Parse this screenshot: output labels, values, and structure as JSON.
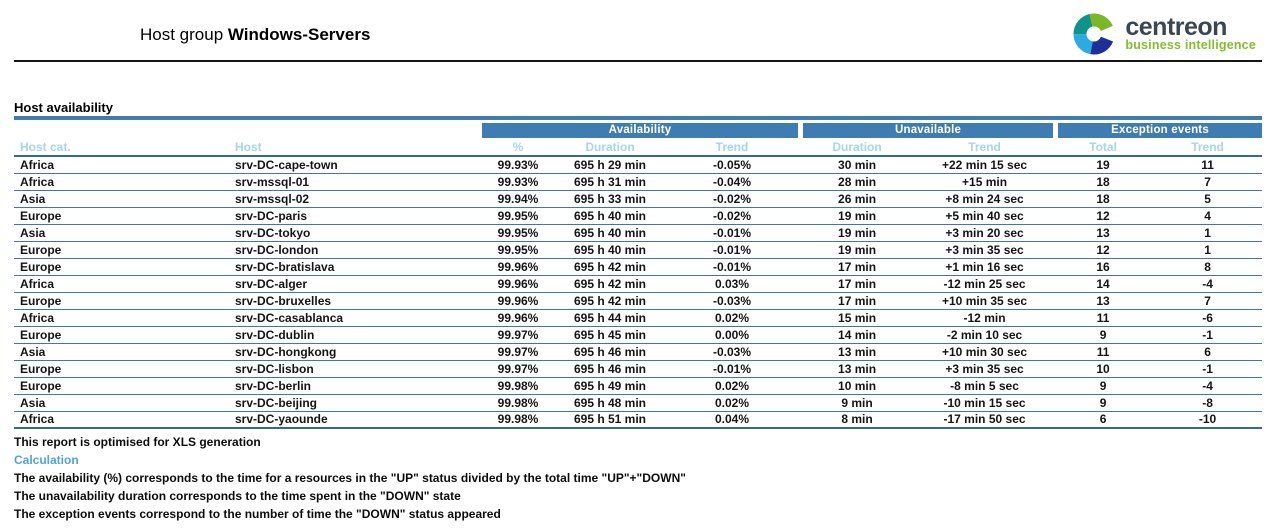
{
  "header": {
    "title_prefix": "Host group",
    "title_name": "Windows-Servers",
    "logo": {
      "brand": "centreon",
      "tagline": "business intelligence"
    }
  },
  "section": {
    "title": "Host availability"
  },
  "table": {
    "groups": [
      {
        "label": "Availability"
      },
      {
        "label": "Unavailable"
      },
      {
        "label": "Exception events"
      }
    ],
    "columns": [
      "Host cat.",
      "Host",
      "%",
      "Duration",
      "Trend",
      "Duration",
      "Trend",
      "Total",
      "Trend"
    ],
    "rows": [
      [
        "Africa",
        "srv-DC-cape-town",
        "99.93%",
        "695 h 29 min",
        "-0.05%",
        "30 min",
        "+22 min 15 sec",
        "19",
        "11"
      ],
      [
        "Africa",
        "srv-mssql-01",
        "99.93%",
        "695 h 31 min",
        "-0.04%",
        "28 min",
        "+15 min",
        "18",
        "7"
      ],
      [
        "Asia",
        "srv-mssql-02",
        "99.94%",
        "695 h 33 min",
        "-0.02%",
        "26 min",
        "+8 min 24 sec",
        "18",
        "5"
      ],
      [
        "Europe",
        "srv-DC-paris",
        "99.95%",
        "695 h 40 min",
        "-0.02%",
        "19 min",
        "+5 min 40 sec",
        "12",
        "4"
      ],
      [
        "Asia",
        "srv-DC-tokyo",
        "99.95%",
        "695 h 40 min",
        "-0.01%",
        "19 min",
        "+3 min 20 sec",
        "13",
        "1"
      ],
      [
        "Europe",
        "srv-DC-london",
        "99.95%",
        "695 h 40 min",
        "-0.01%",
        "19 min",
        "+3 min 35 sec",
        "12",
        "1"
      ],
      [
        "Europe",
        "srv-DC-bratislava",
        "99.96%",
        "695 h 42 min",
        "-0.01%",
        "17 min",
        "+1 min 16 sec",
        "16",
        "8"
      ],
      [
        "Africa",
        "srv-DC-alger",
        "99.96%",
        "695 h 42 min",
        "0.03%",
        "17 min",
        "-12 min 25 sec",
        "14",
        "-4"
      ],
      [
        "Europe",
        "srv-DC-bruxelles",
        "99.96%",
        "695 h 42 min",
        "-0.03%",
        "17 min",
        "+10 min 35 sec",
        "13",
        "7"
      ],
      [
        "Africa",
        "srv-DC-casablanca",
        "99.96%",
        "695 h 44 min",
        "0.02%",
        "15 min",
        "-12 min",
        "11",
        "-6"
      ],
      [
        "Europe",
        "srv-DC-dublin",
        "99.97%",
        "695 h 45 min",
        "0.00%",
        "14 min",
        "-2 min 10 sec",
        "9",
        "-1"
      ],
      [
        "Asia",
        "srv-DC-hongkong",
        "99.97%",
        "695 h 46 min",
        "-0.03%",
        "13 min",
        "+10 min 30 sec",
        "11",
        "6"
      ],
      [
        "Europe",
        "srv-DC-lisbon",
        "99.97%",
        "695 h 46 min",
        "-0.01%",
        "13 min",
        "+3 min 35 sec",
        "10",
        "-1"
      ],
      [
        "Europe",
        "srv-DC-berlin",
        "99.98%",
        "695 h 49 min",
        "0.02%",
        "10 min",
        "-8 min 5 sec",
        "9",
        "-4"
      ],
      [
        "Asia",
        "srv-DC-beijing",
        "99.98%",
        "695 h 48 min",
        "0.02%",
        "9 min",
        "-10 min 15 sec",
        "9",
        "-8"
      ],
      [
        "Africa",
        "srv-DC-yaounde",
        "99.98%",
        "695 h 51 min",
        "0.04%",
        "8 min",
        "-17 min 50 sec",
        "6",
        "-10"
      ]
    ]
  },
  "footer": {
    "note": "This report is optimised for XLS generation",
    "calculation_title": "Calculation",
    "lines": [
      "The availability (%) corresponds to the time for a resources in the \"UP\" status divided by the total time \"UP\"+\"DOWN\"",
      "The unavailability duration corresponds to the time spent in the \"DOWN\" state",
      "The exception events correspond to the number of time the \"DOWN\" status appeared"
    ]
  },
  "colors": {
    "header_bar": "#3e7cb1",
    "subheader_text": "#a5d5ef",
    "row_line": "#3c77ad",
    "heavy_line": "#35699c",
    "calculation_title": "#52a3d9",
    "logo_dark": "#3a4654",
    "logo_green": "#84bd2f"
  }
}
